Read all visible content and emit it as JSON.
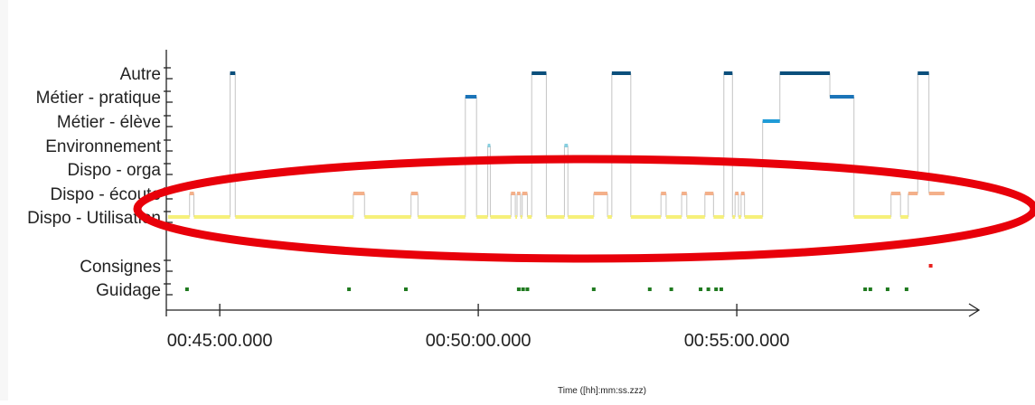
{
  "chart_data": {
    "type": "timeline",
    "xlabel": "Time ([hh]:mm:ss.zzz)",
    "x_ticks": [
      {
        "time_s": 2700,
        "label": "00:45:00.000"
      },
      {
        "time_s": 3000,
        "label": "00:50:00.000"
      },
      {
        "time_s": 3300,
        "label": "00:55:00.000"
      }
    ],
    "xlim_s": [
      2638,
      3205
    ],
    "categories": [
      "Autre",
      "Métier - pratique",
      "Métier - élève",
      "Environnement",
      "Dispo - orga",
      "Dispo - écoute",
      "Dispo - Utilisation",
      "Consignes",
      "Guidage"
    ],
    "category_colors": {
      "Autre": "#0b4f7c",
      "Métier - pratique": "#1b74b8",
      "Métier - élève": "#1f9bd7",
      "Environnement": "#86cfe0",
      "Dispo - orga": "#cccccc",
      "Dispo - écoute": "#f4b08a",
      "Dispo - Utilisation": "#f6f07a",
      "Consignes": "#e8221f",
      "Guidage": "#1f7a1f"
    },
    "state_sequence": [
      {
        "state": "Dispo - Utilisation",
        "start_s": 2640,
        "end_s": 2665
      },
      {
        "state": "Dispo - écoute",
        "start_s": 2665,
        "end_s": 2670
      },
      {
        "state": "Dispo - Utilisation",
        "start_s": 2670,
        "end_s": 2712
      },
      {
        "state": "Autre",
        "start_s": 2712,
        "end_s": 2718
      },
      {
        "state": "Dispo - Utilisation",
        "start_s": 2718,
        "end_s": 2855
      },
      {
        "state": "Dispo - écoute",
        "start_s": 2855,
        "end_s": 2868
      },
      {
        "state": "Dispo - Utilisation",
        "start_s": 2868,
        "end_s": 2922
      },
      {
        "state": "Dispo - écoute",
        "start_s": 2922,
        "end_s": 2930
      },
      {
        "state": "Dispo - Utilisation",
        "start_s": 2930,
        "end_s": 2985
      },
      {
        "state": "Métier - pratique",
        "start_s": 2985,
        "end_s": 2998
      },
      {
        "state": "Dispo - Utilisation",
        "start_s": 2998,
        "end_s": 3011
      },
      {
        "state": "Environnement",
        "start_s": 3011,
        "end_s": 3014
      },
      {
        "state": "Dispo - Utilisation",
        "start_s": 3014,
        "end_s": 3038
      },
      {
        "state": "Dispo - écoute",
        "start_s": 3038,
        "end_s": 3043
      },
      {
        "state": "Dispo - Utilisation",
        "start_s": 3043,
        "end_s": 3045
      },
      {
        "state": "Dispo - écoute",
        "start_s": 3045,
        "end_s": 3049
      },
      {
        "state": "Dispo - Utilisation",
        "start_s": 3049,
        "end_s": 3051
      },
      {
        "state": "Dispo - écoute",
        "start_s": 3051,
        "end_s": 3057
      },
      {
        "state": "Dispo - Utilisation",
        "start_s": 3057,
        "end_s": 3062
      },
      {
        "state": "Autre",
        "start_s": 3062,
        "end_s": 3079
      },
      {
        "state": "Dispo - Utilisation",
        "start_s": 3079,
        "end_s": 3100
      },
      {
        "state": "Environnement",
        "start_s": 3100,
        "end_s": 3104
      },
      {
        "state": "Dispo - Utilisation",
        "start_s": 3104,
        "end_s": 3134
      },
      {
        "state": "Dispo - écoute",
        "start_s": 3134,
        "end_s": 3150
      },
      {
        "state": "Dispo - Utilisation",
        "start_s": 3150,
        "end_s": 3155
      },
      {
        "state": "Autre",
        "start_s": 3155,
        "end_s": 3177
      },
      {
        "state": "Dispo - Utilisation",
        "start_s": 3177,
        "end_s": 3212
      },
      {
        "state": "Dispo - écoute",
        "start_s": 3212,
        "end_s": 3218
      },
      {
        "state": "Dispo - Utilisation",
        "start_s": 3218,
        "end_s": 3236
      },
      {
        "state": "Dispo - écoute",
        "start_s": 3236,
        "end_s": 3242
      },
      {
        "state": "Dispo - Utilisation",
        "start_s": 3242,
        "end_s": 3263
      },
      {
        "state": "Dispo - écoute",
        "start_s": 3263,
        "end_s": 3273
      },
      {
        "state": "Dispo - Utilisation",
        "start_s": 3273,
        "end_s": 3285
      },
      {
        "state": "Autre",
        "start_s": 3285,
        "end_s": 3295
      },
      {
        "state": "Dispo - Utilisation",
        "start_s": 3295,
        "end_s": 3298
      },
      {
        "state": "Dispo - écoute",
        "start_s": 3298,
        "end_s": 3302
      },
      {
        "state": "Dispo - Utilisation",
        "start_s": 3302,
        "end_s": 3305
      },
      {
        "state": "Dispo - écoute",
        "start_s": 3305,
        "end_s": 3309
      },
      {
        "state": "Dispo - Utilisation",
        "start_s": 3309,
        "end_s": 3330
      },
      {
        "state": "Métier - élève",
        "start_s": 3330,
        "end_s": 3350
      },
      {
        "state": "Autre",
        "start_s": 3350,
        "end_s": 3408
      },
      {
        "state": "Métier - pratique",
        "start_s": 3408,
        "end_s": 3436
      },
      {
        "state": "Dispo - Utilisation",
        "start_s": 3436,
        "end_s": 3479
      },
      {
        "state": "Dispo - écoute",
        "start_s": 3479,
        "end_s": 3490
      },
      {
        "state": "Dispo - Utilisation",
        "start_s": 3490,
        "end_s": 3499
      },
      {
        "state": "Dispo - écoute",
        "start_s": 3499,
        "end_s": 3510
      },
      {
        "state": "Autre",
        "start_s": 3510,
        "end_s": 3523
      },
      {
        "state": "Dispo - écoute",
        "start_s": 3523,
        "end_s": 3541
      }
    ],
    "events": [
      {
        "state": "Consignes",
        "times_s": [
          3525
        ]
      },
      {
        "state": "Guidage",
        "times_s": [
          2662,
          2850,
          2916,
          3047,
          3052,
          3057,
          3134,
          3199,
          3224,
          3258,
          3267,
          3276,
          3282,
          3449,
          3455,
          3475,
          3497
        ]
      }
    ],
    "annotation": {
      "type": "ellipse",
      "color": "#e8000a",
      "highlights": [
        "Dispo - écoute",
        "Dispo - Utilisation"
      ]
    }
  }
}
